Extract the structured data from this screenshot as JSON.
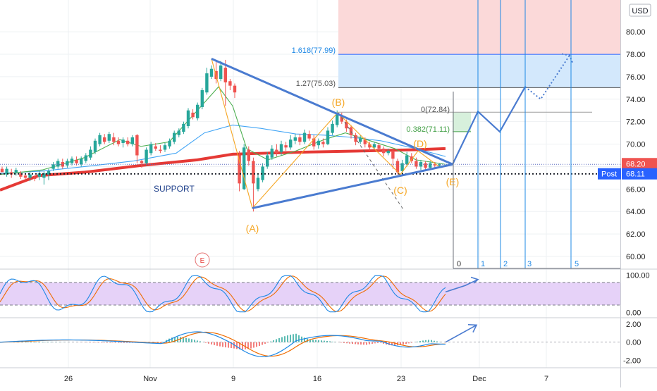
{
  "currency_badge": "USD",
  "price_badges": {
    "last": "68.20",
    "post_label": "Post",
    "post": "68.11"
  },
  "annotations": {
    "support": "SUPPORT",
    "wave_A": "(A)",
    "wave_B": "(B)",
    "wave_C": "(C)",
    "wave_D": "(D)",
    "wave_E": "(E)",
    "fib_1618": "1.618(77.99)",
    "fib_127": "1.27(75.03)",
    "fib_0": "0(72.84)",
    "fib_0382": "0.382(71.11)",
    "earnings": "E",
    "count_labels": [
      "0",
      "1",
      "2",
      "3",
      "5"
    ]
  },
  "colors": {
    "up": "#26a69a",
    "down": "#ef5350",
    "trend": "#4a7bd0",
    "ma200": "#e53935",
    "ma_green": "#4caf50",
    "ma_blue": "#42a5f5",
    "wave": "#f5a623",
    "grid": "#eef0f3"
  },
  "chart_data": [
    {
      "type": "candlestick",
      "panel": "price",
      "x_axis_labels": [
        "26",
        "Nov",
        "9",
        "16",
        "23",
        "Dec",
        "7"
      ],
      "y_ticks": [
        "80.00",
        "78.00",
        "76.00",
        "74.00",
        "72.00",
        "70.00",
        "68.00",
        "66.00",
        "64.00",
        "62.00",
        "60.00"
      ],
      "ylim": [
        59.5,
        82.2
      ],
      "ohlc": [
        [
          67.8,
          67.5,
          68.0,
          67.6
        ],
        [
          67.3,
          67.8,
          68.0,
          67.1
        ],
        [
          67.5,
          67.3,
          67.8,
          67.0
        ],
        [
          67.5,
          67.7,
          67.9,
          67.2
        ],
        [
          67.4,
          67.1,
          67.6,
          66.9
        ],
        [
          67.2,
          67.0,
          67.4,
          66.8
        ],
        [
          67.0,
          67.3,
          67.5,
          66.7
        ],
        [
          67.0,
          66.9,
          67.2,
          66.7
        ],
        [
          67.1,
          67.4,
          67.6,
          66.8
        ],
        [
          67.0,
          67.4,
          67.6,
          66.4
        ],
        [
          67.3,
          67.6,
          67.8,
          66.8
        ],
        [
          67.8,
          68.2,
          68.4,
          67.6
        ],
        [
          68.0,
          68.5,
          68.7,
          67.8
        ],
        [
          68.4,
          68.0,
          68.7,
          67.8
        ],
        [
          68.1,
          68.5,
          68.7,
          67.9
        ],
        [
          68.3,
          68.7,
          68.9,
          68.1
        ],
        [
          68.6,
          68.3,
          68.9,
          68.1
        ],
        [
          68.2,
          68.7,
          68.9,
          68.0
        ],
        [
          68.5,
          69.0,
          69.2,
          68.3
        ],
        [
          68.8,
          69.5,
          69.8,
          68.6
        ],
        [
          69.3,
          70.3,
          70.5,
          69.1
        ],
        [
          70.0,
          70.8,
          71.0,
          69.8
        ],
        [
          70.6,
          70.2,
          70.9,
          70.0
        ],
        [
          70.3,
          70.9,
          71.1,
          70.1
        ],
        [
          70.6,
          70.2,
          71.0,
          69.9
        ],
        [
          70.3,
          70.0,
          70.6,
          69.8
        ],
        [
          70.1,
          70.4,
          70.6,
          69.7
        ],
        [
          70.3,
          70.0,
          70.6,
          69.8
        ],
        [
          70.0,
          70.6,
          70.8,
          69.8
        ],
        [
          70.8,
          69.0,
          70.9,
          68.3
        ],
        [
          68.5,
          68.3,
          68.6,
          67.9
        ],
        [
          68.3,
          69.5,
          69.7,
          68.1
        ],
        [
          69.2,
          70.0,
          70.2,
          69.0
        ],
        [
          69.8,
          69.6,
          70.1,
          69.4
        ],
        [
          69.5,
          69.4,
          69.9,
          69.2
        ],
        [
          69.5,
          69.9,
          70.1,
          69.3
        ],
        [
          69.8,
          70.3,
          70.5,
          69.6
        ],
        [
          70.2,
          71.0,
          71.2,
          70.0
        ],
        [
          70.8,
          71.2,
          71.4,
          70.6
        ],
        [
          71.1,
          71.8,
          72.0,
          70.9
        ],
        [
          71.6,
          73.0,
          73.2,
          71.4
        ],
        [
          72.8,
          72.4,
          73.1,
          72.2
        ],
        [
          72.3,
          73.5,
          73.7,
          72.1
        ],
        [
          73.3,
          74.8,
          75.0,
          73.1
        ],
        [
          74.6,
          76.3,
          76.8,
          74.4
        ],
        [
          76.0,
          76.7,
          77.0,
          75.8
        ],
        [
          76.5,
          75.8,
          77.3,
          75.4
        ],
        [
          75.8,
          77.0,
          77.4,
          75.6
        ],
        [
          76.8,
          75.5,
          77.5,
          73.4
        ],
        [
          75.6,
          75.2,
          75.8,
          74.8
        ],
        [
          75.2,
          74.6,
          75.4,
          74.1
        ],
        [
          69.0,
          66.5,
          69.4,
          65.8
        ],
        [
          66.0,
          69.7,
          70.0,
          65.9
        ],
        [
          69.5,
          68.5,
          69.8,
          68.1
        ],
        [
          68.5,
          66.5,
          68.8,
          64.0
        ],
        [
          66.0,
          67.0,
          67.3,
          65.8
        ],
        [
          66.8,
          68.0,
          68.3,
          66.6
        ],
        [
          68.0,
          69.0,
          69.3,
          67.8
        ],
        [
          68.8,
          69.6,
          69.9,
          68.6
        ],
        [
          69.5,
          69.2,
          70.0,
          68.9
        ],
        [
          69.3,
          70.0,
          70.3,
          69.0
        ],
        [
          69.9,
          69.7,
          70.2,
          69.4
        ],
        [
          69.7,
          70.4,
          70.8,
          69.5
        ],
        [
          70.3,
          70.6,
          70.9,
          70.0
        ],
        [
          70.6,
          70.2,
          70.9,
          69.9
        ],
        [
          70.2,
          71.0,
          71.3,
          70.0
        ],
        [
          70.9,
          70.5,
          71.2,
          70.3
        ],
        [
          70.5,
          69.8,
          70.8,
          69.5
        ],
        [
          69.9,
          70.3,
          70.5,
          69.6
        ],
        [
          70.2,
          70.0,
          70.5,
          69.7
        ],
        [
          70.0,
          71.2,
          71.5,
          69.9
        ],
        [
          71.0,
          71.8,
          72.1,
          70.8
        ],
        [
          71.7,
          72.7,
          73.0,
          71.5
        ],
        [
          72.5,
          72.0,
          72.8,
          71.8
        ],
        [
          72.0,
          71.4,
          72.2,
          71.1
        ],
        [
          71.5,
          70.8,
          71.7,
          70.5
        ],
        [
          70.8,
          70.2,
          71.0,
          69.9
        ],
        [
          70.2,
          70.5,
          70.8,
          70.0
        ],
        [
          70.4,
          70.0,
          70.6,
          69.7
        ],
        [
          70.0,
          69.7,
          70.2,
          69.4
        ],
        [
          69.7,
          70.0,
          70.2,
          69.5
        ],
        [
          69.9,
          69.6,
          70.1,
          69.3
        ],
        [
          69.6,
          69.2,
          69.8,
          68.9
        ],
        [
          69.2,
          69.4,
          69.6,
          69.0
        ],
        [
          69.4,
          68.7,
          69.5,
          67.8
        ],
        [
          68.5,
          67.5,
          68.7,
          67.3
        ],
        [
          67.6,
          68.3,
          68.6,
          67.4
        ],
        [
          68.2,
          69.0,
          69.3,
          68.0
        ],
        [
          68.9,
          68.5,
          69.2,
          68.3
        ],
        [
          68.5,
          68.0,
          68.8,
          67.8
        ],
        [
          68.0,
          68.4,
          68.6,
          67.7
        ],
        [
          68.3,
          67.9,
          68.5,
          67.6
        ],
        [
          67.9,
          68.3,
          68.5,
          67.7
        ],
        [
          68.2,
          68.1,
          68.4,
          67.8
        ],
        [
          68.1,
          68.2,
          68.3,
          68.0
        ]
      ],
      "moving_averages": [
        {
          "name": "",
          "color": "#e53935",
          "points": [
            [
              0,
              65.9
            ],
            [
              55,
              67.2
            ],
            [
              120,
              67.5
            ],
            [
              200,
              68.1
            ],
            [
              280,
              68.6
            ],
            [
              330,
              69.1
            ],
            [
              380,
              69.2
            ],
            [
              440,
              69.3
            ],
            [
              520,
              69.4
            ],
            [
              590,
              69.5
            ],
            [
              632,
              69.6
            ]
          ]
        },
        {
          "name": "",
          "color": "#42a5f5",
          "points": [
            [
              0,
              67.4
            ],
            [
              60,
              67.6
            ],
            [
              120,
              68.0
            ],
            [
              190,
              68.5
            ],
            [
              250,
              69.2
            ],
            [
              290,
              71.0
            ],
            [
              330,
              71.7
            ],
            [
              370,
              71.4
            ],
            [
              420,
              70.9
            ],
            [
              460,
              70.8
            ],
            [
              500,
              70.6
            ],
            [
              540,
              70.3
            ],
            [
              590,
              69.6
            ],
            [
              632,
              68.9
            ]
          ]
        },
        {
          "name": "",
          "color": "#4caf50",
          "points": [
            [
              0,
              67.3
            ],
            [
              60,
              67.7
            ],
            [
              120,
              68.8
            ],
            [
              170,
              70.4
            ],
            [
              200,
              69.8
            ],
            [
              240,
              70.2
            ],
            [
              280,
              73.0
            ],
            [
              310,
              75.1
            ],
            [
              330,
              73.4
            ],
            [
              350,
              69.6
            ],
            [
              380,
              68.6
            ],
            [
              420,
              69.4
            ],
            [
              460,
              70.4
            ],
            [
              490,
              71.0
            ],
            [
              520,
              70.4
            ],
            [
              560,
              69.6
            ],
            [
              590,
              68.6
            ],
            [
              632,
              68.2
            ]
          ]
        }
      ],
      "horizontal_levels": [
        {
          "label": "1.618(77.99)",
          "value": 77.99
        },
        {
          "label": "1.27(75.03)",
          "value": 75.03
        },
        {
          "label": "0(72.84)",
          "value": 72.84
        },
        {
          "label": "0.382(71.11)",
          "value": 71.11
        },
        {
          "label": "SUPPORT",
          "value": 67.35
        }
      ],
      "trendlines": [
        {
          "from": [
            300,
            77.6
          ],
          "to": [
            642,
            68.2
          ]
        },
        {
          "from": [
            358,
            64.3
          ],
          "to": [
            642,
            68.2
          ]
        }
      ],
      "wave_points": [
        {
          "label": "(A)",
          "x": 358,
          "y": 64.3
        },
        {
          "label": "(B)",
          "x": 479,
          "y": 72.8
        },
        {
          "label": "(C)",
          "x": 568,
          "y": 67.3
        },
        {
          "label": "(D)",
          "x": 593,
          "y": 69.4
        },
        {
          "label": "(E)",
          "x": 642,
          "y": 67.2
        }
      ],
      "projection": [
        [
          642,
          68.2
        ],
        [
          678,
          72.9
        ],
        [
          709,
          71.1
        ],
        [
          745,
          75.1
        ],
        [
          767,
          74.0
        ],
        [
          808,
          77.9
        ]
      ],
      "last_price": 68.2,
      "post_price": 68.11
    },
    {
      "type": "line",
      "panel": "stochastic",
      "y_ticks": [
        "100.00",
        "0.00"
      ],
      "ylim": [
        -8,
        108
      ],
      "band": [
        20,
        80
      ]
    },
    {
      "type": "line",
      "panel": "macd",
      "y_ticks": [
        "2.00",
        "0.00",
        "-2.00"
      ],
      "ylim": [
        -2.6,
        2.4
      ]
    }
  ]
}
